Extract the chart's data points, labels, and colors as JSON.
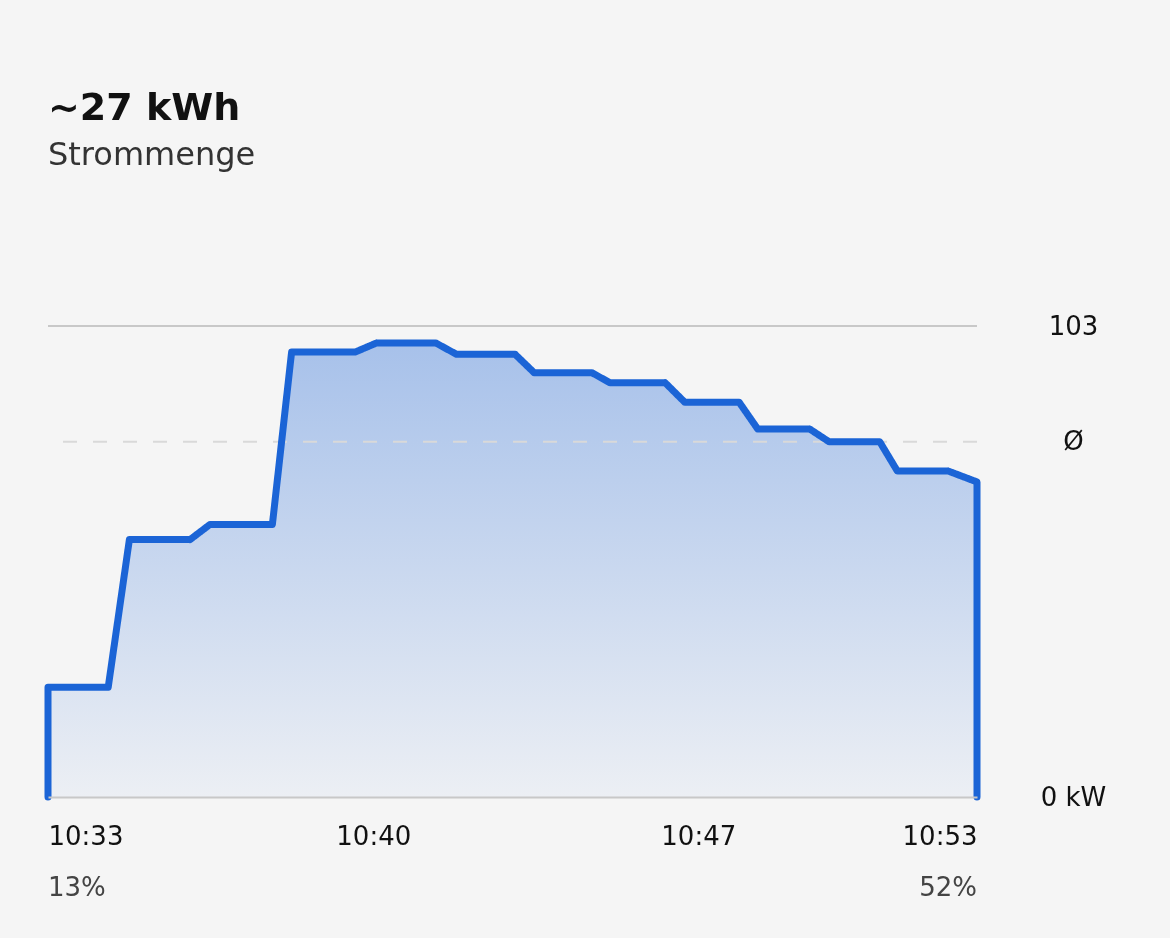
{
  "chart_data": {
    "type": "area",
    "title": "~27 kWh",
    "subtitle": "Strommenge",
    "x": [
      10.55,
      10.55,
      10.5716,
      10.5792,
      10.601,
      10.6081,
      10.6305,
      10.6374,
      10.6602,
      10.6679,
      10.6891,
      10.6966,
      10.7176,
      10.7244,
      10.7451,
      10.7516,
      10.7714,
      10.7785,
      10.798,
      10.8046,
      10.8232,
      10.8302,
      10.8484,
      10.8547,
      10.8729,
      10.8833,
      10.8833
    ],
    "series": [
      {
        "color": "#1b64d6",
        "values": [
          0,
          24.0,
          24.0,
          56.3,
          56.3,
          59.6,
          59.6,
          97.3,
          97.3,
          99.3,
          99.3,
          96.8,
          96.8,
          92.8,
          92.8,
          90.6,
          90.6,
          86.3,
          86.3,
          80.5,
          80.5,
          77.7,
          77.7,
          71.3,
          71.3,
          68.9,
          0
        ]
      }
    ],
    "xlim": [
      10.55,
      10.8833
    ],
    "xticks": [
      {
        "value": 10.55,
        "label": "10:33"
      },
      {
        "value": 10.6667,
        "label": "10:40"
      },
      {
        "value": 10.7833,
        "label": "10:47"
      },
      {
        "value": 10.8833,
        "label": "10:53"
      }
    ],
    "ylim": [
      0,
      103
    ],
    "yticks": [
      {
        "value": 0,
        "label": "0 kW"
      },
      {
        "value": 77.7,
        "label": "Ø"
      },
      103
    ],
    "ref_lines": [
      {
        "axis": "y",
        "value": 77.7,
        "line_style": "dashed",
        "color": "#d9d9d9"
      }
    ],
    "annotations": [
      "13%",
      "52%"
    ],
    "legend": false,
    "line_style": "solid"
  }
}
